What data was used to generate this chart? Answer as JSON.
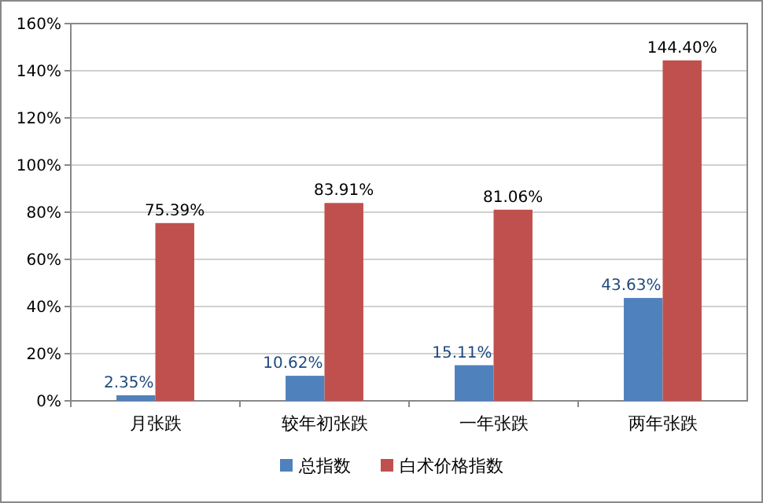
{
  "chart_data": {
    "type": "bar",
    "categories": [
      "月张跌",
      "较年初张跌",
      "一年张跌",
      "两年张跌"
    ],
    "series": [
      {
        "name": "总指数",
        "color": "#4f81bd",
        "values": [
          2.35,
          10.62,
          15.11,
          43.63
        ],
        "value_labels": [
          "2.35%",
          "10.62%",
          "15.11%",
          "43.63%"
        ]
      },
      {
        "name": "白术价格指数",
        "color": "#c0504d",
        "values": [
          75.39,
          83.91,
          81.06,
          144.4
        ],
        "value_labels": [
          "75.39%",
          "83.91%",
          "81.06%",
          "144.40%"
        ]
      }
    ],
    "ylim": [
      0,
      160
    ],
    "yticks": [
      {
        "value": 0,
        "label": "0%"
      },
      {
        "value": 20,
        "label": "20%"
      },
      {
        "value": 40,
        "label": "40%"
      },
      {
        "value": 60,
        "label": "60%"
      },
      {
        "value": 80,
        "label": "80%"
      },
      {
        "value": 100,
        "label": "100%"
      },
      {
        "value": 120,
        "label": "120%"
      },
      {
        "value": 140,
        "label": "140%"
      },
      {
        "value": 160,
        "label": "160%"
      }
    ],
    "grid": "y",
    "legend": "bottom"
  }
}
